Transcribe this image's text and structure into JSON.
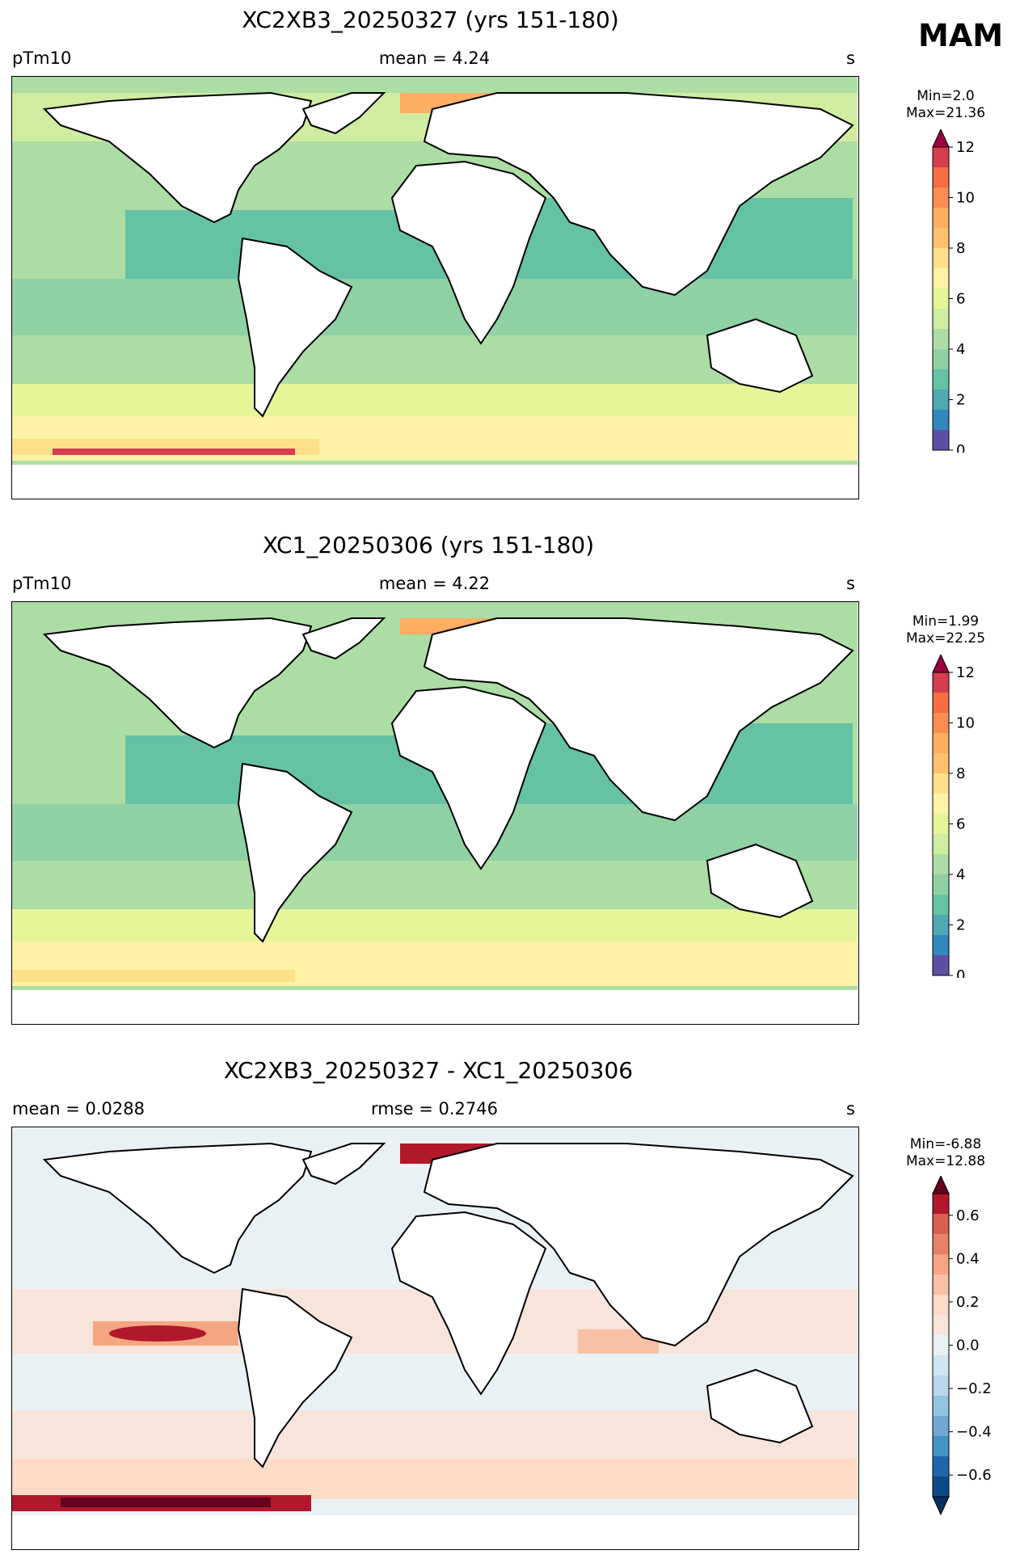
{
  "season": "MAM",
  "units_symbol": "s",
  "panels": [
    {
      "title": "XC2XB3_20250327 (yrs 151-180)",
      "left_label": "pTm10",
      "center_label": "mean = 4.24",
      "right_label": "s",
      "min_label": "Min=2.0",
      "max_label": "Max=21.36",
      "colormap": "Spectral_r",
      "colorbar": {
        "ticks": [
          "0",
          "2",
          "4",
          "6",
          "8",
          "10",
          "12"
        ],
        "colors": [
          "#5e4fa2",
          "#3288bd",
          "#4fa8b2",
          "#66c2a5",
          "#8fd1a4",
          "#abdda4",
          "#cfeca0",
          "#e6f598",
          "#fdf2a6",
          "#fee08b",
          "#fdc06e",
          "#fdae61",
          "#f98d52",
          "#f46d43",
          "#d53e4f"
        ],
        "extend_color": "#9e0142"
      }
    },
    {
      "title": "XC1_20250306 (yrs 151-180)",
      "left_label": "pTm10",
      "center_label": "mean = 4.22",
      "right_label": "s",
      "min_label": "Min=1.99",
      "max_label": "Max=22.25",
      "colormap": "Spectral_r",
      "colorbar": {
        "ticks": [
          "0",
          "2",
          "4",
          "6",
          "8",
          "10",
          "12"
        ],
        "colors": [
          "#5e4fa2",
          "#3288bd",
          "#4fa8b2",
          "#66c2a5",
          "#8fd1a4",
          "#abdda4",
          "#cfeca0",
          "#e6f598",
          "#fdf2a6",
          "#fee08b",
          "#fdc06e",
          "#fdae61",
          "#f98d52",
          "#f46d43",
          "#d53e4f"
        ],
        "extend_color": "#9e0142"
      }
    },
    {
      "title": "XC2XB3_20250327 - XC1_20250306",
      "left_label": "mean = 0.0288",
      "center_label": "rmse = 0.2746",
      "right_label": "s",
      "min_label": "Min=-6.88",
      "max_label": "Max=12.88",
      "colormap": "RdBu_r",
      "colorbar": {
        "ticks": [
          "0.6",
          "0.4",
          "0.2",
          "0.0",
          "−0.2",
          "−0.4",
          "−0.6"
        ],
        "colors": [
          "#0d4a8a",
          "#2166ac",
          "#4393c3",
          "#6fa9d2",
          "#92c5de",
          "#b9d7ea",
          "#d1e5f0",
          "#eaf1f5",
          "#f7e4da",
          "#fddbc7",
          "#f8c0a4",
          "#f4a582",
          "#e58268",
          "#d6604d",
          "#b2182b"
        ],
        "extend_low_color": "#053061",
        "extend_high_color": "#67001f"
      }
    }
  ],
  "map_colors": {
    "land": "#ffffff",
    "coast": "#000000"
  }
}
